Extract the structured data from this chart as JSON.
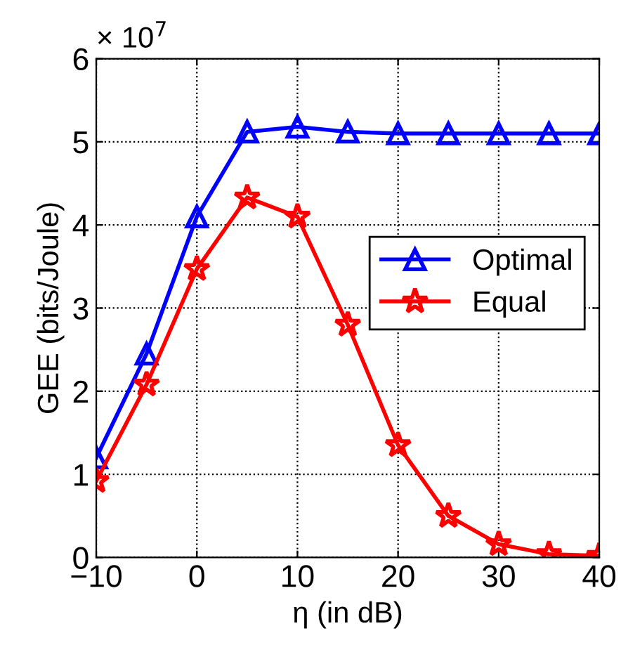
{
  "chart_data": {
    "type": "line",
    "xlabel": "η (in dB)",
    "ylabel": "GEE (bits/Joule)",
    "annotations": [
      "× 10$^{7}$"
    ],
    "x": [
      -10,
      -5,
      0,
      5,
      10,
      15,
      20,
      25,
      30,
      35,
      40
    ],
    "series": [
      {
        "name": "Optimal",
        "color": "#0000ff",
        "marker": "triangle",
        "values": [
          1.2,
          2.45,
          4.1,
          5.12,
          5.18,
          5.12,
          5.1,
          5.1,
          5.1,
          5.1,
          5.1
        ]
      },
      {
        "name": "Equal",
        "color": "#ff0000",
        "marker": "star",
        "values": [
          0.92,
          2.08,
          3.47,
          4.33,
          4.1,
          2.8,
          1.35,
          0.5,
          0.16,
          0.04,
          0.02
        ]
      }
    ],
    "xlim": [
      -10,
      40
    ],
    "xticks": [
      {
        "value": -10,
        "label": "−10"
      },
      0,
      10,
      20,
      30,
      40
    ],
    "ylim": [
      0,
      6
    ],
    "yticks": [
      0,
      1,
      2,
      3,
      4,
      5,
      6
    ],
    "grid": true,
    "legend": "right",
    "line_style": "solid"
  }
}
